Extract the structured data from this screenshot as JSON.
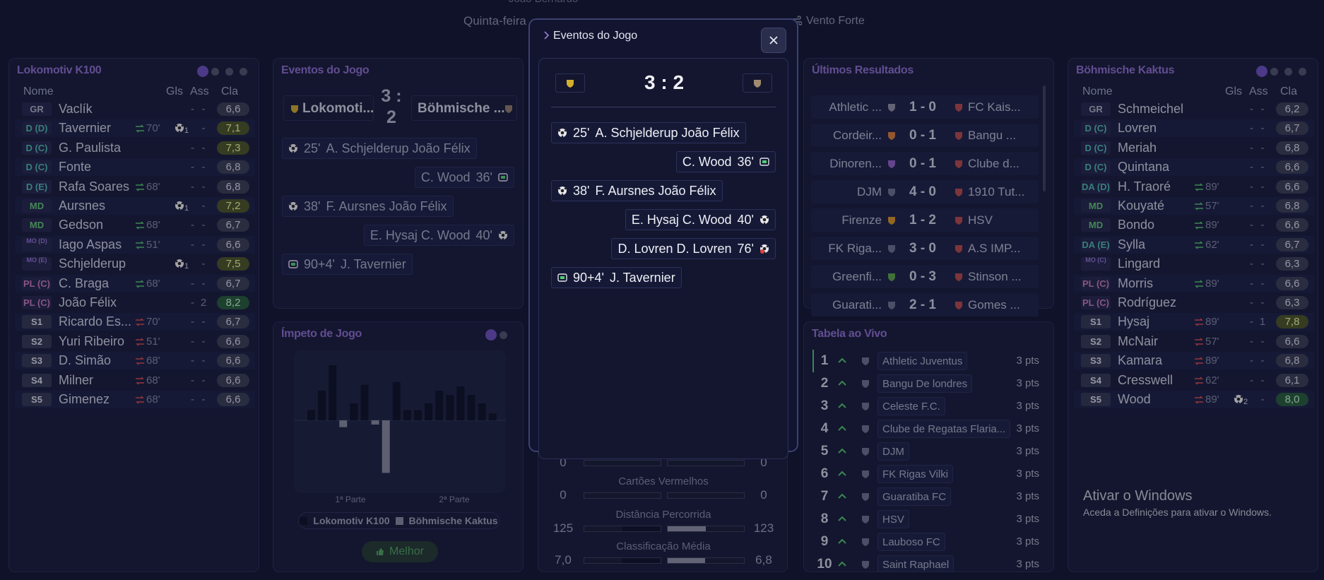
{
  "header": {
    "manager": "João Bernardo",
    "date": "Quinta-feira",
    "weather": "Vento Forte"
  },
  "columns": [
    "Nome",
    "Gls",
    "Ass",
    "Cla"
  ],
  "home_team": {
    "name": "Lokomotiv K100",
    "players": [
      {
        "pos": "GR",
        "name": "Vaclík",
        "gls": "-",
        "ass": "-",
        "cla": "6,6"
      },
      {
        "pos": "D (D)",
        "name": "Tavernier",
        "sub": "70'",
        "sub_kind": "out",
        "gls": 1,
        "ass": "-",
        "cla": "7,1"
      },
      {
        "pos": "D (C)",
        "name": "G. Paulista",
        "gls": "-",
        "ass": "-",
        "cla": "7,3"
      },
      {
        "pos": "D (C)",
        "name": "Fonte",
        "gls": "-",
        "ass": "-",
        "cla": "6,8"
      },
      {
        "pos": "D (E)",
        "name": "Rafa Soares",
        "sub": "68'",
        "sub_kind": "out",
        "gls": "-",
        "ass": "-",
        "cla": "6,8"
      },
      {
        "pos": "MD",
        "name": "Aursnes",
        "gls": 1,
        "ass": "-",
        "cla": "7,2"
      },
      {
        "pos": "MD",
        "name": "Gedson",
        "sub": "68'",
        "sub_kind": "out",
        "gls": "-",
        "ass": "-",
        "cla": "6,7"
      },
      {
        "pos": "MO (D)",
        "name": "Iago Aspas",
        "sub": "51'",
        "sub_kind": "out",
        "gls": "-",
        "ass": "-",
        "cla": "6,6"
      },
      {
        "pos": "MO (E)",
        "name": "Schjelderup",
        "gls": 1,
        "ass": "-",
        "cla": "7,5"
      },
      {
        "pos": "PL (C)",
        "name": "C. Braga",
        "sub": "68'",
        "sub_kind": "out",
        "gls": "-",
        "ass": "-",
        "cla": "6,7"
      },
      {
        "pos": "PL (C)",
        "name": "João Félix",
        "gls": "-",
        "ass": "2",
        "cla": "8,2"
      },
      {
        "pos": "S1",
        "name": "Ricardo Es...",
        "sub": "70'",
        "sub_kind": "in",
        "gls": "-",
        "ass": "-",
        "cla": "6,7"
      },
      {
        "pos": "S2",
        "name": "Yuri Ribeiro",
        "sub": "51'",
        "sub_kind": "in",
        "gls": "-",
        "ass": "-",
        "cla": "6,6"
      },
      {
        "pos": "S3",
        "name": "D. Simão",
        "sub": "68'",
        "sub_kind": "in",
        "gls": "-",
        "ass": "-",
        "cla": "6,6"
      },
      {
        "pos": "S4",
        "name": "Milner",
        "sub": "68'",
        "sub_kind": "in",
        "gls": "-",
        "ass": "-",
        "cla": "6,6"
      },
      {
        "pos": "S5",
        "name": "Gimenez",
        "sub": "68'",
        "sub_kind": "in",
        "gls": "-",
        "ass": "-",
        "cla": "6,6"
      }
    ]
  },
  "away_team": {
    "name": "Böhmische Kaktus",
    "players": [
      {
        "pos": "GR",
        "name": "Schmeichel",
        "gls": "-",
        "ass": "-",
        "cla": "6,2"
      },
      {
        "pos": "D (C)",
        "name": "Lovren",
        "gls": "-",
        "ass": "-",
        "cla": "6,7"
      },
      {
        "pos": "D (C)",
        "name": "Meriah",
        "gls": "-",
        "ass": "-",
        "cla": "6,8"
      },
      {
        "pos": "D (C)",
        "name": "Quintana",
        "gls": "-",
        "ass": "-",
        "cla": "6,6"
      },
      {
        "pos": "DA (D)",
        "name": "H. Traoré",
        "sub": "89'",
        "sub_kind": "out",
        "gls": "-",
        "ass": "-",
        "cla": "6,6"
      },
      {
        "pos": "MD",
        "name": "Kouyaté",
        "sub": "57'",
        "sub_kind": "out",
        "gls": "-",
        "ass": "-",
        "cla": "6,8"
      },
      {
        "pos": "MD",
        "name": "Bondo",
        "sub": "89'",
        "sub_kind": "out",
        "gls": "-",
        "ass": "-",
        "cla": "6,6"
      },
      {
        "pos": "DA (E)",
        "name": "Sylla",
        "sub": "62'",
        "sub_kind": "out",
        "gls": "-",
        "ass": "-",
        "cla": "6,7"
      },
      {
        "pos": "MO (C)",
        "name": "Lingard",
        "gls": "-",
        "ass": "-",
        "cla": "6,3"
      },
      {
        "pos": "PL (C)",
        "name": "Morris",
        "sub": "89'",
        "sub_kind": "out",
        "gls": "-",
        "ass": "-",
        "cla": "6,6"
      },
      {
        "pos": "PL (C)",
        "name": "Rodríguez",
        "gls": "-",
        "ass": "-",
        "cla": "6,3"
      },
      {
        "pos": "S1",
        "name": "Hysaj",
        "sub": "89'",
        "sub_kind": "in",
        "gls": "-",
        "ass": "1",
        "cla": "7,8"
      },
      {
        "pos": "S2",
        "name": "McNair",
        "sub": "57'",
        "sub_kind": "in",
        "gls": "-",
        "ass": "-",
        "cla": "6,6"
      },
      {
        "pos": "S3",
        "name": "Kamara",
        "sub": "89'",
        "sub_kind": "in",
        "gls": "-",
        "ass": "-",
        "cla": "6,8"
      },
      {
        "pos": "S4",
        "name": "Cresswell",
        "sub": "62'",
        "sub_kind": "in",
        "gls": "-",
        "ass": "-",
        "cla": "6,1"
      },
      {
        "pos": "S5",
        "name": "Wood",
        "sub": "89'",
        "sub_kind": "in",
        "gls": 2,
        "ass": "-",
        "cla": "8,0"
      }
    ]
  },
  "events_panel": {
    "title": "Eventos do Jogo",
    "home": "Lokomoti...",
    "score": "3 : 2",
    "away": "Böhmische ...",
    "events": [
      {
        "side": "home",
        "kind": "goal",
        "minute": "25'",
        "text": "A. Schjelderup João Félix"
      },
      {
        "side": "away",
        "kind": "card",
        "minute": "36'",
        "text": "C. Wood"
      },
      {
        "side": "home",
        "kind": "goal",
        "minute": "38'",
        "text": "F. Aursnes João Félix"
      },
      {
        "side": "away",
        "kind": "goal",
        "minute": "40'",
        "text": "E. Hysaj C. Wood"
      },
      {
        "side": "home",
        "kind": "card",
        "minute": "90+4'",
        "text": "J. Tavernier"
      }
    ]
  },
  "momentum": {
    "title": "Ímpeto de Jogo",
    "values": [
      12,
      35,
      65,
      -8,
      20,
      42,
      -5,
      -62,
      45,
      12,
      12,
      20,
      35,
      30,
      40,
      30,
      20,
      8
    ],
    "ylim": [
      -70,
      70
    ],
    "halves": [
      "1ª Parte",
      "2ª Parte"
    ],
    "legend": [
      "Lokomotiv K100",
      "Böhmische Kaktus"
    ],
    "button": "Melhor"
  },
  "stats": [
    {
      "home": 0,
      "away": 0
    },
    {
      "label": "Cartões Vermelhos",
      "home": 0,
      "away": 0
    },
    {
      "label": "Distância Percorrida",
      "home": 125,
      "away": 123
    },
    {
      "label": "Classificação Média",
      "home": 7.0,
      "away": 6.8,
      "home_label": "7,0",
      "away_label": "6,8"
    }
  ],
  "results": {
    "title": "Últimos Resultados",
    "rows": [
      [
        "Athletic ...",
        "1 - 0",
        "FC Kais..."
      ],
      [
        "Cordeir...",
        "0 - 1",
        "Bangu ..."
      ],
      [
        "Dinoren...",
        "0 - 1",
        "Clube d..."
      ],
      [
        "DJM",
        "4 - 0",
        "1910 Tut..."
      ],
      [
        "Firenze",
        "1 - 2",
        "HSV"
      ],
      [
        "FK Riga...",
        "3 - 0",
        "A.S IMP..."
      ],
      [
        "Greenfi...",
        "0 - 3",
        "Stinson ..."
      ],
      [
        "Guarati...",
        "2 - 1",
        "Gomes ..."
      ]
    ]
  },
  "table": {
    "title": "Tabela ao Vivo",
    "rows": [
      [
        "1",
        "Athletic Juventus",
        "3 pts"
      ],
      [
        "2",
        "Bangu De londres",
        "3 pts"
      ],
      [
        "3",
        "Celeste F.C.",
        "3 pts"
      ],
      [
        "4",
        "Clube de Regatas Flaria...",
        "3 pts"
      ],
      [
        "5",
        "DJM",
        "3 pts"
      ],
      [
        "6",
        "FK Rigas Vilki",
        "3 pts"
      ],
      [
        "7",
        "Guaratiba FC",
        "3 pts"
      ],
      [
        "8",
        "HSV",
        "3 pts"
      ],
      [
        "9",
        "Lauboso FC",
        "3 pts"
      ],
      [
        "10",
        "Saint Raphael",
        "3 pts"
      ]
    ]
  },
  "modal": {
    "title": "Eventos do Jogo",
    "score": "3 : 2",
    "events": [
      {
        "side": "home",
        "kind": "goal",
        "minute": "25'",
        "text": "A. Schjelderup João Félix"
      },
      {
        "side": "away",
        "kind": "card",
        "minute": "36'",
        "text": "C. Wood"
      },
      {
        "side": "home",
        "kind": "goal",
        "minute": "38'",
        "text": "F. Aursnes João Félix"
      },
      {
        "side": "away",
        "kind": "goal",
        "minute": "40'",
        "text": "E. Hysaj C. Wood"
      },
      {
        "side": "away",
        "kind": "own_goal",
        "minute": "76'",
        "text": "D. Lovren D. Lovren"
      },
      {
        "side": "home",
        "kind": "card",
        "minute": "90+4'",
        "text": "J. Tavernier"
      }
    ]
  },
  "windows": {
    "title": "Ativar o Windows",
    "text": "Aceda a Definições para ativar o Windows."
  }
}
